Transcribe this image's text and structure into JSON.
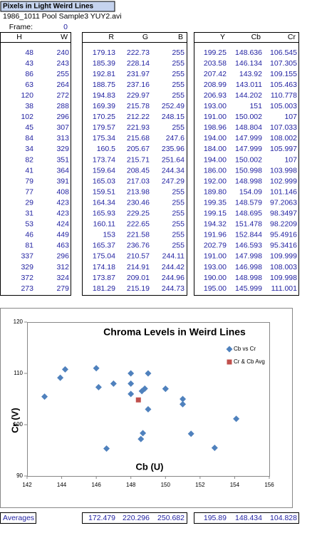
{
  "sheet": {
    "title": "Pixels in Light Weird Lines",
    "file": "1986_1011 Pool Sample3 YUY2.avi",
    "frame_label": "Frame:",
    "frame": "0",
    "headers": [
      "H",
      "W",
      "R",
      "G",
      "B",
      "Y",
      "Cb",
      "Cr"
    ],
    "rows": [
      [
        "48",
        "240",
        "179.13",
        "222.73",
        "255",
        "199.25",
        "148.636",
        "106.545"
      ],
      [
        "43",
        "243",
        "185.39",
        "228.14",
        "255",
        "203.58",
        "146.134",
        "107.305"
      ],
      [
        "86",
        "255",
        "192.81",
        "231.97",
        "255",
        "207.42",
        "143.92",
        "109.155"
      ],
      [
        "63",
        "264",
        "188.75",
        "237.16",
        "255",
        "208.99",
        "143.011",
        "105.463"
      ],
      [
        "120",
        "272",
        "194.83",
        "229.97",
        "255",
        "206.93",
        "144.202",
        "110.778"
      ],
      [
        "38",
        "288",
        "169.39",
        "215.78",
        "252.49",
        "193.00",
        "151",
        "105.003"
      ],
      [
        "102",
        "296",
        "170.25",
        "212.22",
        "248.15",
        "191.00",
        "150.002",
        "107"
      ],
      [
        "45",
        "307",
        "179.57",
        "221.93",
        "255",
        "198.96",
        "148.804",
        "107.033"
      ],
      [
        "84",
        "313",
        "175.34",
        "215.68",
        "247.6",
        "194.00",
        "147.999",
        "108.002"
      ],
      [
        "34",
        "329",
        "160.5",
        "205.67",
        "235.96",
        "184.00",
        "147.999",
        "105.997"
      ],
      [
        "82",
        "351",
        "173.74",
        "215.71",
        "251.64",
        "194.00",
        "150.002",
        "107"
      ],
      [
        "41",
        "364",
        "159.64",
        "208.45",
        "244.34",
        "186.00",
        "150.998",
        "103.998"
      ],
      [
        "79",
        "391",
        "165.03",
        "217.03",
        "247.29",
        "192.00",
        "148.998",
        "102.999"
      ],
      [
        "77",
        "408",
        "159.51",
        "213.98",
        "255",
        "189.80",
        "154.09",
        "101.146"
      ],
      [
        "29",
        "423",
        "164.34",
        "230.46",
        "255",
        "199.35",
        "148.579",
        "97.2063"
      ],
      [
        "31",
        "423",
        "165.93",
        "229.25",
        "255",
        "199.15",
        "148.695",
        "98.3497"
      ],
      [
        "53",
        "424",
        "160.11",
        "222.65",
        "255",
        "194.32",
        "151.478",
        "98.2209"
      ],
      [
        "46",
        "449",
        "153",
        "221.58",
        "255",
        "191.96",
        "152.844",
        "95.4916"
      ],
      [
        "81",
        "463",
        "165.37",
        "236.76",
        "255",
        "202.79",
        "146.593",
        "95.3416"
      ],
      [
        "337",
        "296",
        "175.04",
        "210.57",
        "244.11",
        "191.00",
        "147.998",
        "109.999"
      ],
      [
        "329",
        "312",
        "174.18",
        "214.91",
        "244.42",
        "193.00",
        "146.998",
        "108.003"
      ],
      [
        "372",
        "324",
        "173.87",
        "209.01",
        "244.96",
        "190.00",
        "148.998",
        "109.998"
      ],
      [
        "273",
        "279",
        "181.29",
        "215.19",
        "244.73",
        "195.00",
        "145.999",
        "111.001"
      ]
    ],
    "averages_label": "Averages",
    "averages": [
      "172.479",
      "220.296",
      "250.682",
      "195.89",
      "148.434",
      "104.828"
    ]
  },
  "chart_data": {
    "type": "scatter",
    "title": "Chroma Levels in Weird  Lines",
    "x_label": "Cb (U)",
    "y_label": "Cr (V)",
    "series": [
      {
        "name": "Cb vs Cr",
        "color": "#4f81bd",
        "marker": "diamond",
        "x": [
          148.636,
          146.134,
          143.92,
          143.011,
          144.202,
          151,
          150.002,
          148.804,
          147.999,
          147.999,
          150.002,
          150.998,
          148.998,
          154.09,
          148.579,
          148.695,
          151.478,
          152.844,
          146.593,
          147.998,
          146.998,
          148.998,
          145.999
        ],
        "values": [
          106.545,
          107.305,
          109.155,
          105.463,
          110.778,
          105.003,
          107,
          107.033,
          108.002,
          105.997,
          107,
          103.998,
          102.999,
          101.146,
          97.2063,
          98.3497,
          98.2209,
          95.4916,
          95.3416,
          109.999,
          108.003,
          109.998,
          111.001
        ]
      },
      {
        "name": "Cr & Cb Avg",
        "color": "#c0504d",
        "marker": "square",
        "x": [
          148.434
        ],
        "values": [
          104.828
        ]
      }
    ],
    "xlim": [
      142,
      156
    ],
    "xticks": [
      142,
      144,
      146,
      148,
      150,
      152,
      154,
      156
    ],
    "ylim": [
      90,
      120
    ],
    "yticks": [
      90,
      100,
      110,
      120
    ],
    "grid": false,
    "legend": "upper right"
  }
}
